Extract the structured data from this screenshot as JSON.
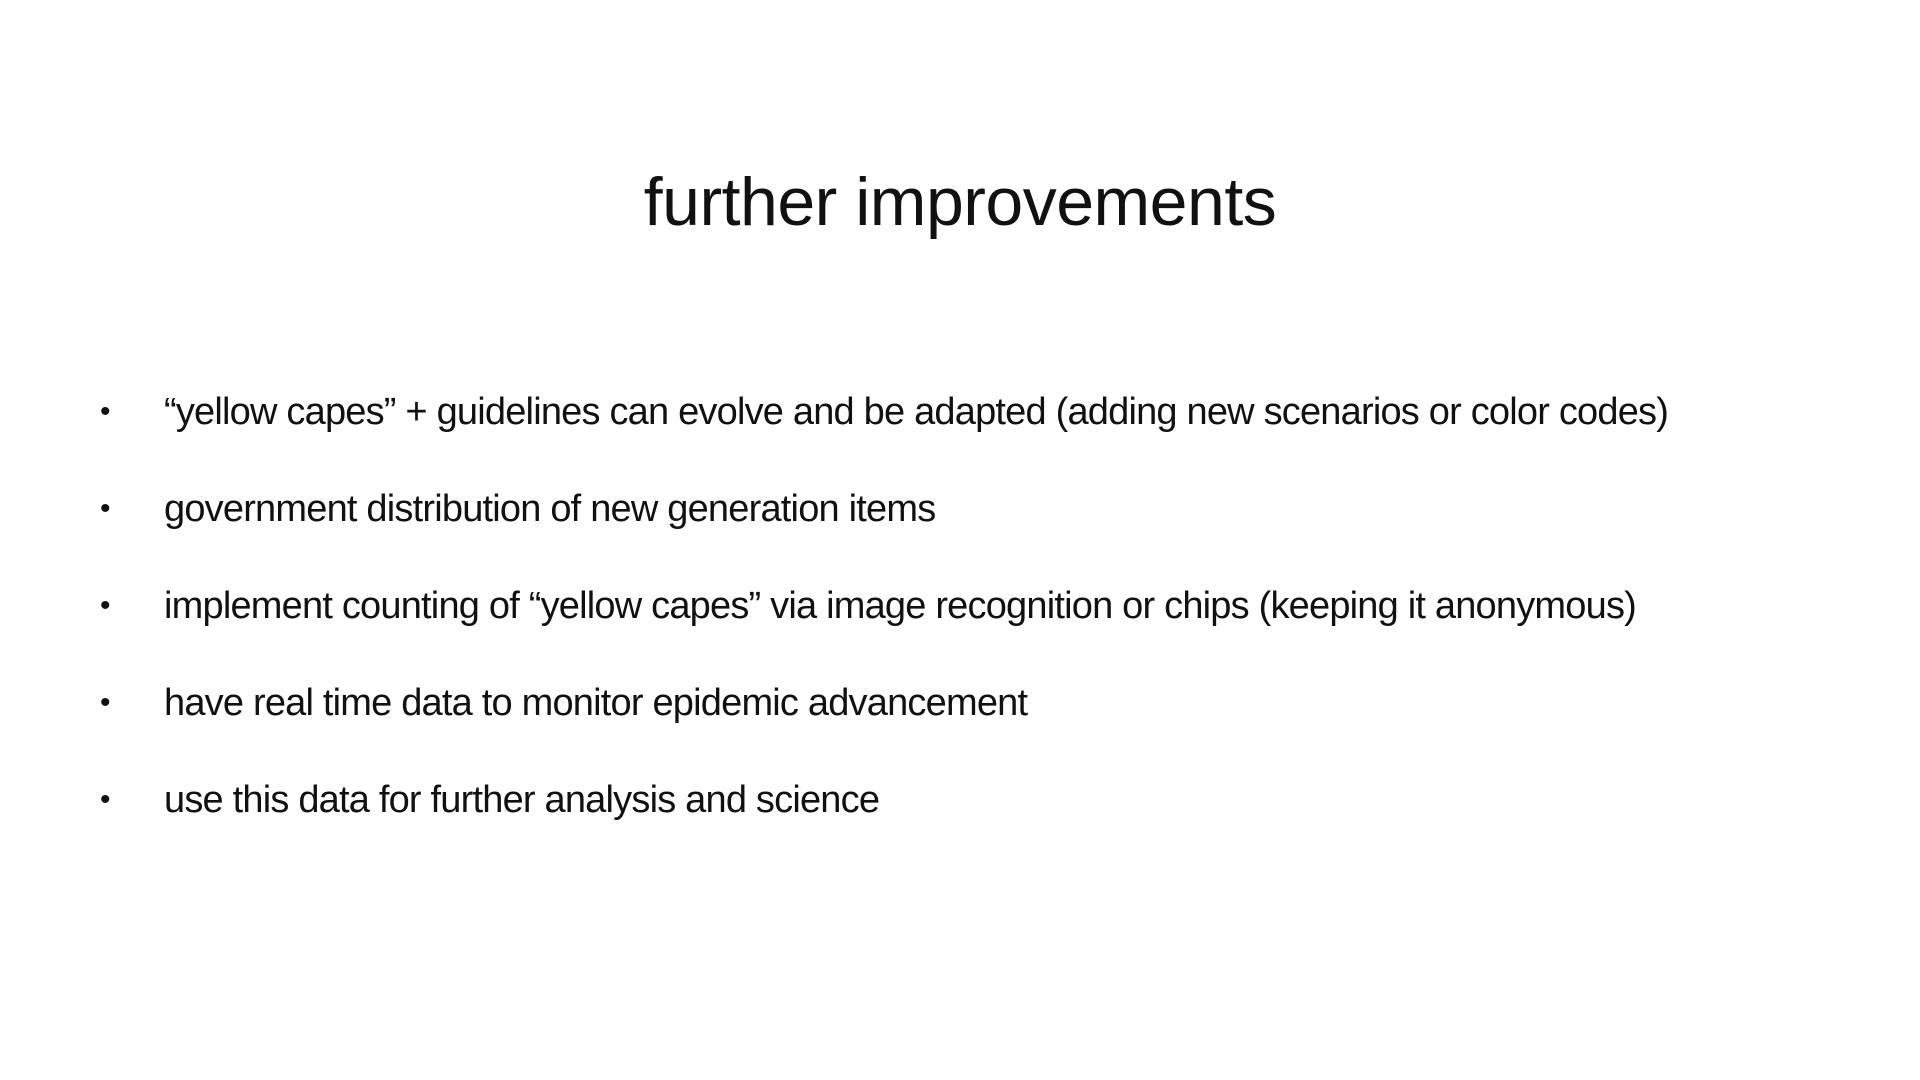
{
  "slide": {
    "title": "further improvements",
    "bullet_symbol": "•",
    "bullets": [
      "“yellow capes” + guidelines can evolve and be adapted (adding new scenarios or color codes)",
      "government distribution of new generation items",
      "implement counting of “yellow capes” via image recognition or chips (keeping it anonymous)",
      "have real time data to monitor epidemic advancement",
      "use this data for further analysis and science"
    ]
  }
}
